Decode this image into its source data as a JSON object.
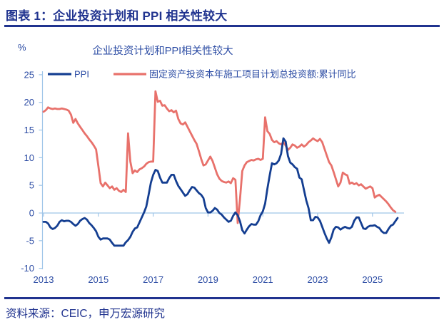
{
  "header": {
    "title": "图表 1：企业投资计划和 PPI 相关性较大"
  },
  "footer": {
    "source": "资料来源：CEIC，申万宏源研究"
  },
  "chart": {
    "unit": "%",
    "title": "企业投资计划和PPI相关性较大"
  },
  "chart_data": {
    "type": "line",
    "title": "企业投资计划和PPI相关性较大",
    "unit": "%",
    "frequency": "monthly",
    "x_start": "2013-01",
    "ylim": [
      -10,
      25
    ],
    "yticks": [
      25,
      20,
      15,
      10,
      5,
      0,
      -5,
      -10
    ],
    "xticks": [
      2013,
      2015,
      2017,
      2019,
      2021,
      2023,
      2025
    ],
    "grid": false,
    "legend_position": "top",
    "axis_color": "#9fc5e8",
    "text_color": "#2c4ca4",
    "series": [
      {
        "key": "ppi",
        "name": "PPI",
        "color": "#143e91",
        "values": [
          -1.6,
          -1.6,
          -1.9,
          -2.6,
          -2.9,
          -2.7,
          -2.3,
          -1.6,
          -1.3,
          -1.5,
          -1.4,
          -1.4,
          -1.6,
          -2.0,
          -2.3,
          -2.0,
          -1.4,
          -1.1,
          -0.9,
          -1.2,
          -1.8,
          -2.2,
          -2.7,
          -3.3,
          -4.3,
          -4.8,
          -4.6,
          -4.6,
          -4.6,
          -4.8,
          -5.4,
          -5.9,
          -5.9,
          -5.9,
          -5.9,
          -5.9,
          -5.3,
          -4.9,
          -4.3,
          -3.4,
          -2.8,
          -2.6,
          -1.7,
          -0.8,
          0.1,
          1.2,
          3.3,
          5.5,
          6.9,
          7.8,
          7.6,
          6.4,
          5.5,
          5.5,
          5.5,
          6.3,
          6.9,
          6.9,
          5.8,
          4.9,
          4.3,
          3.7,
          3.1,
          3.4,
          4.1,
          4.7,
          4.6,
          4.1,
          3.6,
          3.3,
          2.7,
          0.9,
          0.1,
          0.1,
          0.4,
          0.9,
          0.6,
          0.0,
          -0.3,
          -0.8,
          -1.2,
          -1.6,
          -1.4,
          -0.5,
          0.1,
          -0.4,
          -1.5,
          -3.1,
          -3.7,
          -3.0,
          -2.4,
          -2.0,
          -2.1,
          -2.1,
          -1.5,
          -0.4,
          0.3,
          1.7,
          4.4,
          6.8,
          9.0,
          8.8,
          9.0,
          9.5,
          10.7,
          13.5,
          12.9,
          10.3,
          9.1,
          8.8,
          8.3,
          8.0,
          6.4,
          6.1,
          4.2,
          2.3,
          0.9,
          -1.3,
          -1.3,
          -0.7,
          -0.8,
          -1.4,
          -2.5,
          -3.6,
          -4.6,
          -5.4,
          -4.4,
          -3.0,
          -2.5,
          -2.6,
          -3.0,
          -2.7,
          -2.5,
          -2.7,
          -2.8,
          -2.5,
          -1.4,
          -0.8,
          -0.8,
          -1.8,
          -2.8,
          -2.9,
          -2.5,
          -2.3,
          -2.3,
          -2.2,
          -2.5,
          -2.7,
          -3.3,
          -3.6,
          -3.6,
          -2.9,
          -2.3,
          -2.1,
          -1.5,
          -0.9
        ]
      },
      {
        "key": "investment-plan",
        "name": "固定资产投资本年施工项目计划总投资额:累计同比",
        "color": "#e8716b",
        "values": [
          18.3,
          18.6,
          19.1,
          18.9,
          18.8,
          18.9,
          18.8,
          18.8,
          18.9,
          18.8,
          18.7,
          18.5,
          17.8,
          16.3,
          17.0,
          16.2,
          15.6,
          15.0,
          14.4,
          13.9,
          13.3,
          12.8,
          12.2,
          11.5,
          8.5,
          5.4,
          4.8,
          5.5,
          5.0,
          4.5,
          4.8,
          4.2,
          4.5,
          4.0,
          3.8,
          4.2,
          3.8,
          14.4,
          9.3,
          7.2,
          7.7,
          7.4,
          7.9,
          8.1,
          8.4,
          8.9,
          9.2,
          9.3,
          9.3,
          22.0,
          20.1,
          20.3,
          19.4,
          19.5,
          18.9,
          18.4,
          18.6,
          18.2,
          18.5,
          17.0,
          16.2,
          16.0,
          16.4,
          15.6,
          14.8,
          14.0,
          13.2,
          12.5,
          11.2,
          9.8,
          8.6,
          8.8,
          9.5,
          10.2,
          9.4,
          8.2,
          7.0,
          6.2,
          5.8,
          5.6,
          5.5,
          5.7,
          5.4,
          6.3,
          6.0,
          -1.8,
          2.5,
          7.6,
          8.6,
          9.2,
          9.4,
          9.6,
          9.5,
          9.7,
          9.8,
          9.6,
          9.8,
          17.3,
          14.8,
          14.3,
          13.2,
          12.8,
          13.0,
          12.6,
          12.4,
          12.8,
          12.2,
          11.4,
          11.8,
          12.4,
          12.2,
          11.8,
          12.0,
          12.4,
          12.0,
          12.3,
          12.8,
          13.1,
          13.5,
          13.2,
          13.0,
          13.4,
          12.8,
          11.6,
          10.4,
          9.2,
          8.6,
          7.4,
          6.1,
          4.8,
          5.5,
          7.3,
          7.0,
          6.8,
          5.3,
          5.5,
          5.2,
          5.4,
          5.0,
          5.2,
          4.8,
          4.4,
          4.6,
          4.8,
          4.5,
          2.8,
          3.1,
          3.3,
          2.9,
          2.5,
          2.1,
          1.6,
          1.0,
          0.5,
          0.2
        ]
      }
    ]
  }
}
